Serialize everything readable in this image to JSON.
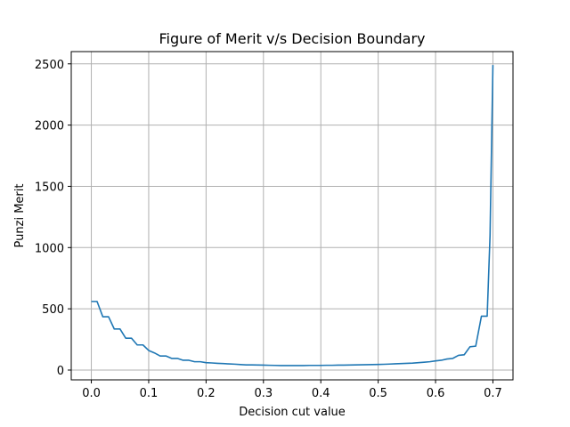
{
  "chart_data": {
    "type": "line",
    "title": "Figure of Merit v/s Decision Boundary",
    "xlabel": "Decision cut value",
    "ylabel": "Punzi Merit",
    "xlim": [
      -0.035,
      0.735
    ],
    "ylim": [
      -80,
      2600
    ],
    "grid": true,
    "xticks": [
      0.0,
      0.1,
      0.2,
      0.3,
      0.4,
      0.5,
      0.6,
      0.7
    ],
    "xtick_labels": [
      "0.0",
      "0.1",
      "0.2",
      "0.3",
      "0.4",
      "0.5",
      "0.6",
      "0.7"
    ],
    "yticks": [
      0,
      500,
      1000,
      1500,
      2000,
      2500
    ],
    "ytick_labels": [
      "0",
      "500",
      "1000",
      "1500",
      "2000",
      "2500"
    ],
    "series": [
      {
        "color": "#1f77b4",
        "x": [
          0.0,
          0.01,
          0.02,
          0.03,
          0.04,
          0.05,
          0.06,
          0.07,
          0.08,
          0.09,
          0.1,
          0.11,
          0.12,
          0.13,
          0.14,
          0.15,
          0.16,
          0.17,
          0.18,
          0.19,
          0.2,
          0.21,
          0.22,
          0.23,
          0.24,
          0.25,
          0.26,
          0.27,
          0.28,
          0.29,
          0.3,
          0.31,
          0.32,
          0.33,
          0.34,
          0.35,
          0.36,
          0.37,
          0.38,
          0.39,
          0.4,
          0.41,
          0.42,
          0.43,
          0.44,
          0.45,
          0.46,
          0.47,
          0.48,
          0.49,
          0.5,
          0.51,
          0.52,
          0.53,
          0.54,
          0.55,
          0.56,
          0.57,
          0.58,
          0.59,
          0.6,
          0.61,
          0.62,
          0.63,
          0.64,
          0.65,
          0.66,
          0.67,
          0.68,
          0.69,
          0.695,
          0.7
        ],
        "y": [
          560,
          560,
          435,
          435,
          335,
          335,
          260,
          260,
          205,
          205,
          160,
          140,
          115,
          115,
          95,
          95,
          80,
          80,
          68,
          68,
          60,
          58,
          55,
          53,
          50,
          48,
          45,
          42,
          42,
          41,
          40,
          39,
          38,
          37,
          37,
          37,
          37,
          37,
          38,
          38,
          38,
          39,
          39,
          40,
          40,
          41,
          42,
          43,
          44,
          45,
          46,
          47,
          49,
          51,
          53,
          55,
          57,
          60,
          64,
          68,
          75,
          80,
          90,
          95,
          120,
          125,
          190,
          195,
          440,
          440,
          1100,
          2490
        ]
      }
    ]
  }
}
